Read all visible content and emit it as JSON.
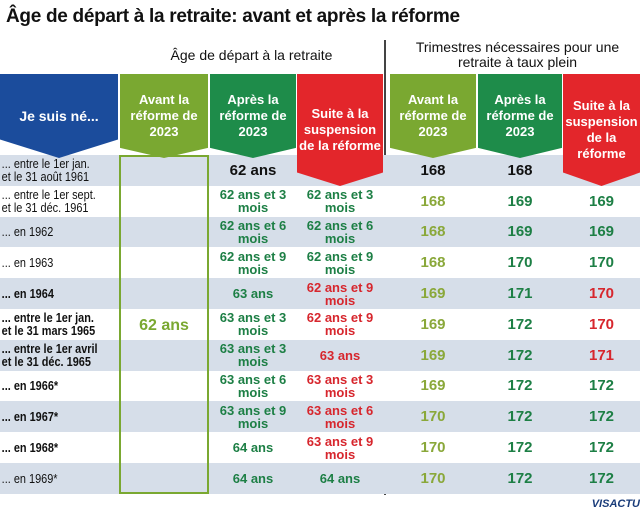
{
  "title": "Âge de départ à la retraite: avant et après la réforme",
  "colors": {
    "blue": "#1b4c9c",
    "light_green": "#7aa831",
    "dark_green": "#1e8c4a",
    "red": "#e3262b",
    "row_alt": "#d6dee9",
    "text_light_green": "#8aa83a",
    "text_dark_green": "#1d7f45",
    "text_red": "#d7262d"
  },
  "chart_data": {
    "type": "table",
    "title": "Âge de départ à la retraite: avant et après la réforme",
    "groups": [
      "Âge de départ à la retraite",
      "Trimestres nécessaires pour une retraite à taux plein"
    ],
    "row_header": "Je suis né...",
    "columns": [
      "Avant la réforme de 2023",
      "Après la réforme de 2023",
      "Suite à la suspension de la réforme",
      "Avant la réforme de 2023",
      "Après la réforme de 2023",
      "Suite à la suspension de la réforme"
    ],
    "age_before_all": "62 ans",
    "rows": [
      {
        "label": "... entre le 1er jan. et le 31 août 1961",
        "bold": false,
        "age_after": "62 ans",
        "age_susp": "",
        "q_before": "168",
        "q_after": "168",
        "q_susp": ""
      },
      {
        "label": "... entre le 1er sept. et le 31 déc. 1961",
        "bold": false,
        "age_after": "62 ans et 3 mois",
        "age_susp": "62 ans et 3 mois",
        "q_before": "168",
        "q_after": "169",
        "q_susp": "169"
      },
      {
        "label": "... en 1962",
        "bold": false,
        "age_after": "62 ans et 6 mois",
        "age_susp": "62 ans et 6 mois",
        "q_before": "168",
        "q_after": "169",
        "q_susp": "169"
      },
      {
        "label": "... en 1963",
        "bold": false,
        "age_after": "62 ans et 9 mois",
        "age_susp": "62 ans et 9 mois",
        "q_before": "168",
        "q_after": "170",
        "q_susp": "170"
      },
      {
        "label": "... en 1964",
        "bold": true,
        "age_after": "63 ans",
        "age_susp": "62 ans et 9 mois",
        "q_before": "169",
        "q_after": "171",
        "q_susp": "170"
      },
      {
        "label": "... entre le 1er jan. et le 31 mars 1965",
        "bold": true,
        "age_after": "63 ans et 3 mois",
        "age_susp": "62 ans et 9 mois",
        "q_before": "169",
        "q_after": "172",
        "q_susp": "170"
      },
      {
        "label": "... entre le 1er avril et le 31 déc. 1965",
        "bold": true,
        "age_after": "63 ans et 3 mois",
        "age_susp": "63 ans",
        "q_before": "169",
        "q_after": "172",
        "q_susp": "171"
      },
      {
        "label": "... en 1966*",
        "bold": true,
        "age_after": "63 ans et 6 mois",
        "age_susp": "63 ans et 3 mois",
        "q_before": "169",
        "q_after": "172",
        "q_susp": "172"
      },
      {
        "label": "... en 1967*",
        "bold": true,
        "age_after": "63 ans et 9 mois",
        "age_susp": "63 ans et 6 mois",
        "q_before": "170",
        "q_after": "172",
        "q_susp": "172"
      },
      {
        "label": "... en 1968*",
        "bold": true,
        "age_after": "64 ans",
        "age_susp": "63 ans et 9 mois",
        "q_before": "170",
        "q_after": "172",
        "q_susp": "172"
      },
      {
        "label": "... en 1969*",
        "bold": false,
        "age_after": "64 ans",
        "age_susp": "64 ans",
        "q_before": "170",
        "q_after": "172",
        "q_susp": "172"
      }
    ]
  },
  "logo": "VISACTU"
}
